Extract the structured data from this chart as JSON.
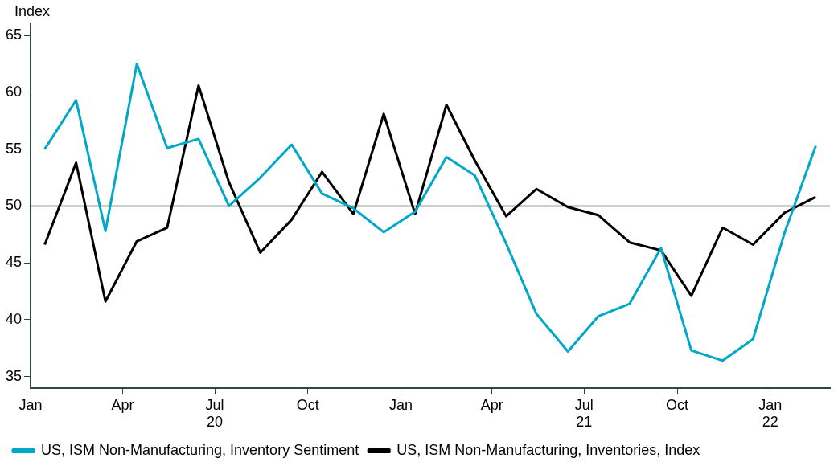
{
  "chart_data": {
    "type": "line",
    "ylabel": "Index",
    "x": [
      "2020-01-15",
      "2020-02-15",
      "2020-03-15",
      "2020-04-15",
      "2020-05-15",
      "2020-06-15",
      "2020-07-15",
      "2020-08-15",
      "2020-09-15",
      "2020-10-15",
      "2020-11-15",
      "2020-12-15",
      "2021-01-15",
      "2021-02-15",
      "2021-03-15",
      "2021-04-15",
      "2021-05-15",
      "2021-06-15",
      "2021-07-15",
      "2021-08-15",
      "2021-09-15",
      "2021-10-15",
      "2021-11-15",
      "2021-12-15",
      "2022-01-15",
      "2022-02-15"
    ],
    "series": [
      {
        "name": "US, ISM Non-Manufacturing, Inventory Sentiment",
        "color": "#00a8c8",
        "values": [
          55.0,
          59.3,
          47.8,
          62.5,
          55.1,
          55.9,
          50.0,
          52.5,
          55.4,
          51.1,
          49.8,
          47.7,
          49.5,
          54.3,
          52.7,
          46.7,
          40.5,
          37.2,
          40.3,
          41.4,
          46.3,
          37.3,
          36.4,
          38.3,
          47.6,
          55.3
        ]
      },
      {
        "name": "US, ISM Non-Manufacturing, Inventories, Index",
        "color": "#000000",
        "values": [
          46.6,
          53.8,
          41.6,
          46.9,
          48.1,
          60.6,
          52.1,
          45.9,
          48.8,
          53.0,
          49.3,
          58.1,
          49.3,
          58.9,
          54.0,
          49.1,
          51.5,
          49.9,
          49.2,
          46.8,
          46.1,
          42.1,
          48.1,
          46.6,
          49.4,
          50.8
        ]
      }
    ],
    "xlim": [
      "2020-01-01",
      "2022-03-01"
    ],
    "xticks": [
      {
        "value": "2020-01-01",
        "label": "Jan"
      },
      {
        "value": "2020-04-01",
        "label": "Apr"
      },
      {
        "value": "2020-07-01",
        "label": "Jul\n20"
      },
      {
        "value": "2020-10-01",
        "label": "Oct"
      },
      {
        "value": "2021-01-01",
        "label": "Jan"
      },
      {
        "value": "2021-04-01",
        "label": "Apr"
      },
      {
        "value": "2021-07-01",
        "label": "Jul\n21"
      },
      {
        "value": "2021-10-01",
        "label": "Oct"
      },
      {
        "value": "2022-01-01",
        "label": "Jan\n22"
      }
    ],
    "ylim": [
      34,
      66
    ],
    "yticks": [
      35,
      40,
      45,
      50,
      55,
      60,
      65
    ],
    "ref_lines": [
      {
        "axis": "y",
        "value": 50,
        "color": "#2f4a3a"
      }
    ],
    "grid": false,
    "legend": "bottom left",
    "marker": "none",
    "line_style": "solid"
  }
}
